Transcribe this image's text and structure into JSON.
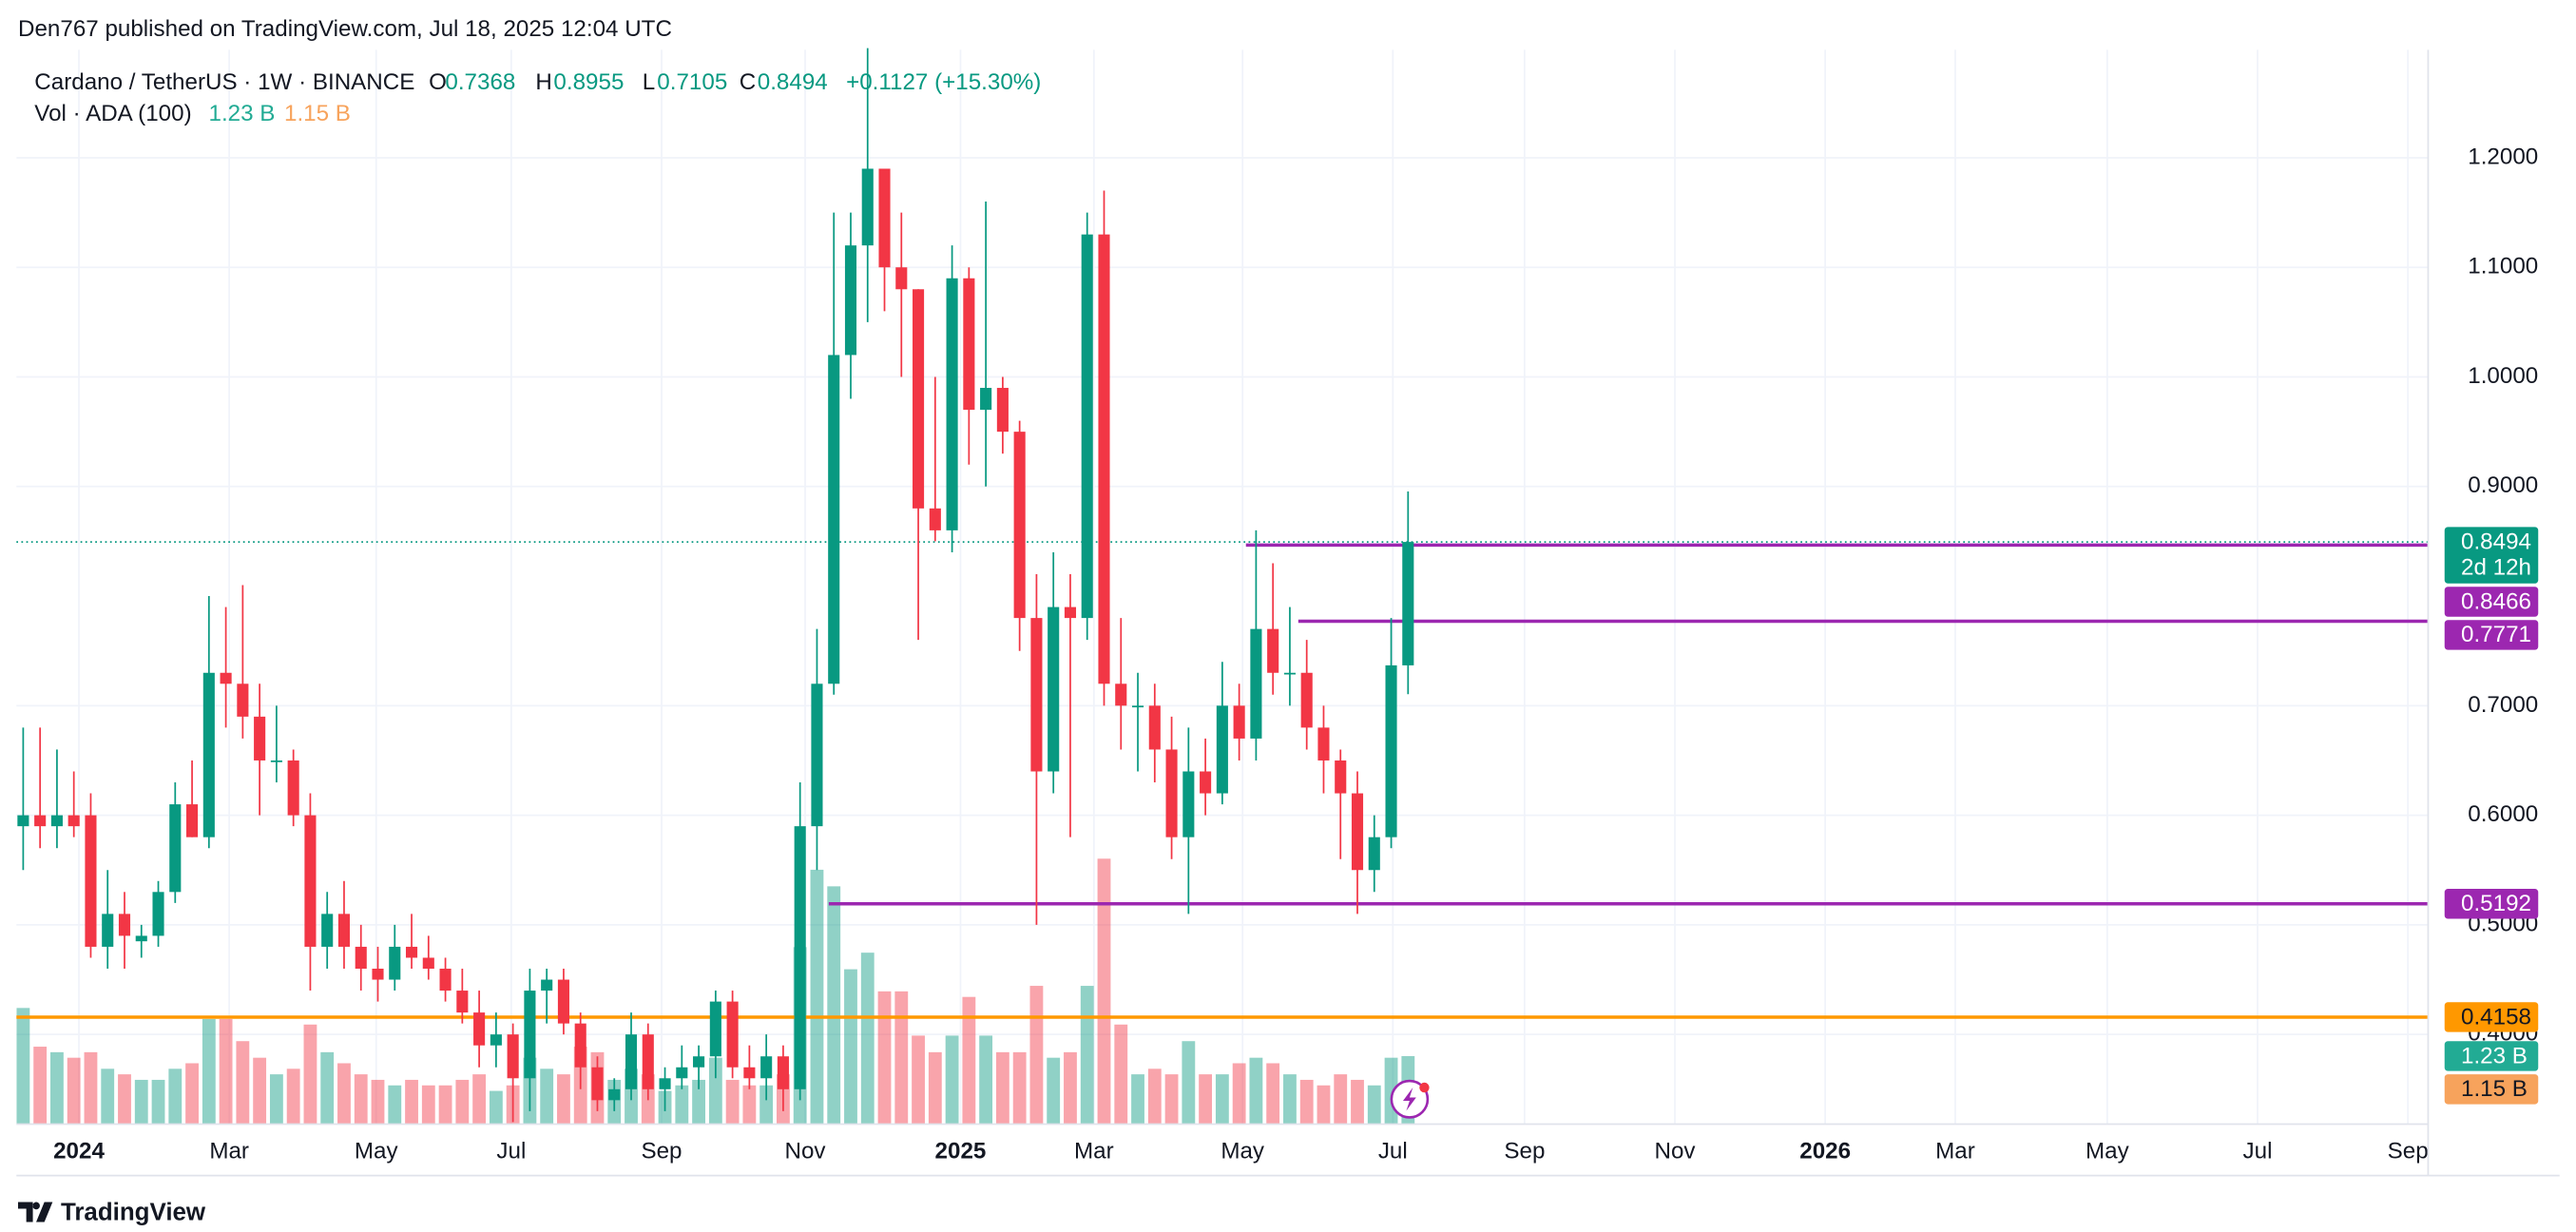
{
  "header": {
    "published": "Den767 published on TradingView.com, Jul 18, 2025 12:04 UTC"
  },
  "footer": {
    "brand": "TradingView"
  },
  "chart_data": {
    "type": "candlestick",
    "symbol": "Cardano / TetherUS · 1W · BINANCE",
    "ohlc_names": [
      "O",
      "H",
      "L",
      "C"
    ],
    "change": "+0.1127 (+15.30%)",
    "countdown": "2d 12h",
    "up_color": "#089981",
    "down_color": "#f23645",
    "grid": true,
    "xlim": [
      -0.4,
      142.4
    ],
    "xticks": [
      {
        "value": 3.3,
        "label": "2024"
      },
      {
        "value": 12.2,
        "label": "Mar"
      },
      {
        "value": 20.9,
        "label": "May"
      },
      {
        "value": 28.9,
        "label": "Jul"
      },
      {
        "value": 37.8,
        "label": "Sep"
      },
      {
        "value": 46.3,
        "label": "Nov"
      },
      {
        "value": 55.5,
        "label": "2025"
      },
      {
        "value": 63.4,
        "label": "Mar"
      },
      {
        "value": 72.2,
        "label": "May"
      },
      {
        "value": 81.1,
        "label": "Jul"
      },
      {
        "value": 88.9,
        "label": "Sep"
      },
      {
        "value": 97.8,
        "label": "Nov"
      },
      {
        "value": 106.7,
        "label": "2026"
      },
      {
        "value": 114.4,
        "label": "Mar"
      },
      {
        "value": 123.4,
        "label": "May"
      },
      {
        "value": 132.3,
        "label": "Jul"
      },
      {
        "value": 141.2,
        "label": "Sep"
      }
    ],
    "ylim": [
      0.3182,
      1.2985
    ],
    "yticks": [
      {
        "value": 1.2,
        "label": "1.2000"
      },
      {
        "value": 1.1,
        "label": "1.1000"
      },
      {
        "value": 1.0,
        "label": "1.0000"
      },
      {
        "value": 0.9,
        "label": "0.9000"
      },
      {
        "value": 0.7,
        "label": "0.7000"
      },
      {
        "value": 0.6,
        "label": "0.6000"
      },
      {
        "value": 0.5,
        "label": "0.5000"
      },
      {
        "value": 0.4,
        "label": "0.4000"
      }
    ],
    "ohlc": [
      [
        0.59,
        0.68,
        0.55,
        0.6
      ],
      [
        0.6,
        0.68,
        0.57,
        0.59
      ],
      [
        0.59,
        0.66,
        0.57,
        0.6
      ],
      [
        0.6,
        0.64,
        0.58,
        0.59
      ],
      [
        0.6,
        0.62,
        0.47,
        0.48
      ],
      [
        0.48,
        0.55,
        0.46,
        0.51
      ],
      [
        0.51,
        0.53,
        0.46,
        0.49
      ],
      [
        0.485,
        0.5,
        0.47,
        0.49
      ],
      [
        0.49,
        0.54,
        0.48,
        0.53
      ],
      [
        0.53,
        0.63,
        0.52,
        0.61
      ],
      [
        0.61,
        0.65,
        0.58,
        0.58
      ],
      [
        0.58,
        0.8,
        0.57,
        0.73
      ],
      [
        0.73,
        0.79,
        0.68,
        0.72
      ],
      [
        0.72,
        0.81,
        0.67,
        0.69
      ],
      [
        0.69,
        0.72,
        0.6,
        0.65
      ],
      [
        0.65,
        0.7,
        0.63,
        0.65
      ],
      [
        0.65,
        0.66,
        0.59,
        0.6
      ],
      [
        0.6,
        0.62,
        0.44,
        0.48
      ],
      [
        0.48,
        0.53,
        0.46,
        0.51
      ],
      [
        0.51,
        0.54,
        0.46,
        0.48
      ],
      [
        0.48,
        0.5,
        0.44,
        0.46
      ],
      [
        0.46,
        0.48,
        0.43,
        0.45
      ],
      [
        0.45,
        0.5,
        0.44,
        0.48
      ],
      [
        0.48,
        0.51,
        0.46,
        0.47
      ],
      [
        0.47,
        0.49,
        0.45,
        0.46
      ],
      [
        0.46,
        0.47,
        0.43,
        0.44
      ],
      [
        0.44,
        0.46,
        0.41,
        0.42
      ],
      [
        0.42,
        0.44,
        0.37,
        0.39
      ],
      [
        0.39,
        0.42,
        0.37,
        0.4
      ],
      [
        0.4,
        0.41,
        0.32,
        0.36
      ],
      [
        0.36,
        0.46,
        0.33,
        0.44
      ],
      [
        0.44,
        0.46,
        0.41,
        0.45
      ],
      [
        0.45,
        0.46,
        0.4,
        0.41
      ],
      [
        0.41,
        0.42,
        0.35,
        0.37
      ],
      [
        0.37,
        0.38,
        0.33,
        0.34
      ],
      [
        0.34,
        0.36,
        0.33,
        0.35
      ],
      [
        0.35,
        0.42,
        0.34,
        0.4
      ],
      [
        0.4,
        0.41,
        0.34,
        0.35
      ],
      [
        0.35,
        0.37,
        0.33,
        0.36
      ],
      [
        0.36,
        0.39,
        0.35,
        0.37
      ],
      [
        0.37,
        0.39,
        0.35,
        0.38
      ],
      [
        0.38,
        0.44,
        0.36,
        0.43
      ],
      [
        0.43,
        0.44,
        0.36,
        0.37
      ],
      [
        0.37,
        0.39,
        0.35,
        0.36
      ],
      [
        0.36,
        0.4,
        0.34,
        0.38
      ],
      [
        0.38,
        0.39,
        0.33,
        0.35
      ],
      [
        0.35,
        0.63,
        0.34,
        0.59
      ],
      [
        0.59,
        0.77,
        0.55,
        0.72
      ],
      [
        0.72,
        1.15,
        0.71,
        1.02
      ],
      [
        1.02,
        1.15,
        0.98,
        1.12
      ],
      [
        1.12,
        1.3,
        1.05,
        1.19
      ],
      [
        1.19,
        1.19,
        1.06,
        1.1
      ],
      [
        1.1,
        1.15,
        1.0,
        1.08
      ],
      [
        1.08,
        1.08,
        0.76,
        0.88
      ],
      [
        0.88,
        1.0,
        0.85,
        0.86
      ],
      [
        0.86,
        1.12,
        0.84,
        1.09
      ],
      [
        1.09,
        1.1,
        0.92,
        0.97
      ],
      [
        0.97,
        1.16,
        0.9,
        0.99
      ],
      [
        0.99,
        1.0,
        0.93,
        0.95
      ],
      [
        0.95,
        0.96,
        0.75,
        0.78
      ],
      [
        0.78,
        0.82,
        0.5,
        0.64
      ],
      [
        0.64,
        0.84,
        0.62,
        0.79
      ],
      [
        0.79,
        0.82,
        0.58,
        0.78
      ],
      [
        0.78,
        1.15,
        0.76,
        1.13
      ],
      [
        1.13,
        1.17,
        0.7,
        0.72
      ],
      [
        0.72,
        0.78,
        0.66,
        0.7
      ],
      [
        0.7,
        0.73,
        0.64,
        0.7
      ],
      [
        0.7,
        0.72,
        0.63,
        0.66
      ],
      [
        0.66,
        0.69,
        0.56,
        0.58
      ],
      [
        0.58,
        0.68,
        0.51,
        0.64
      ],
      [
        0.64,
        0.67,
        0.6,
        0.62
      ],
      [
        0.62,
        0.74,
        0.61,
        0.7
      ],
      [
        0.7,
        0.72,
        0.65,
        0.67
      ],
      [
        0.67,
        0.86,
        0.65,
        0.77
      ],
      [
        0.77,
        0.83,
        0.71,
        0.73
      ],
      [
        0.73,
        0.79,
        0.7,
        0.73
      ],
      [
        0.73,
        0.76,
        0.66,
        0.68
      ],
      [
        0.68,
        0.7,
        0.62,
        0.65
      ],
      [
        0.65,
        0.66,
        0.56,
        0.62
      ],
      [
        0.62,
        0.64,
        0.51,
        0.55
      ],
      [
        0.55,
        0.6,
        0.53,
        0.58
      ],
      [
        0.58,
        0.78,
        0.57,
        0.7368
      ],
      [
        0.7368,
        0.8955,
        0.7105,
        0.8494
      ]
    ],
    "volume": {
      "name": "Vol · ADA (100)",
      "values": [
        2.1,
        1.4,
        1.3,
        1.2,
        1.3,
        1.0,
        0.9,
        0.8,
        0.8,
        1.0,
        1.1,
        1.9,
        1.9,
        1.5,
        1.2,
        0.9,
        1.0,
        1.8,
        1.3,
        1.1,
        0.9,
        0.8,
        0.7,
        0.8,
        0.7,
        0.7,
        0.8,
        0.9,
        0.6,
        0.7,
        1.2,
        1.0,
        0.9,
        1.4,
        1.3,
        0.8,
        1.0,
        0.9,
        0.6,
        0.7,
        0.8,
        1.2,
        0.8,
        0.7,
        0.7,
        0.9,
        3.2,
        4.6,
        4.3,
        2.8,
        3.1,
        2.4,
        2.4,
        1.6,
        1.3,
        1.6,
        2.3,
        1.6,
        1.3,
        1.3,
        2.5,
        1.2,
        1.3,
        2.5,
        4.8,
        1.8,
        0.9,
        1.0,
        0.9,
        1.5,
        0.9,
        0.9,
        1.1,
        1.2,
        1.1,
        0.9,
        0.8,
        0.7,
        0.9,
        0.8,
        0.7,
        1.2,
        1.23
      ],
      "last_label": "1.23 B",
      "ma": {
        "value": 1.15,
        "label": "1.15 B",
        "color": "#f7a35c"
      }
    },
    "levels": [
      {
        "value": 0.8466,
        "color": "#9c27b0",
        "x_start": 72.4
      },
      {
        "value": 0.7771,
        "color": "#9c27b0",
        "x_start": 75.5
      },
      {
        "value": 0.5192,
        "color": "#9c27b0",
        "x_start": 47.7
      },
      {
        "value": 0.4158,
        "color": "#ff9800"
      }
    ]
  }
}
